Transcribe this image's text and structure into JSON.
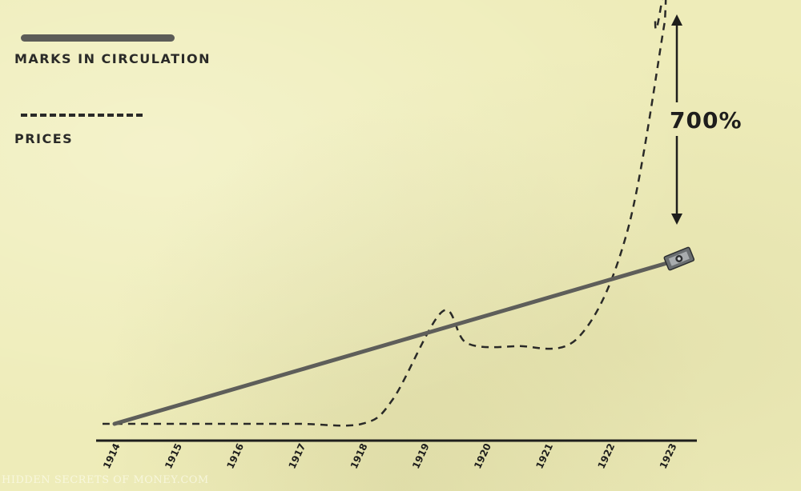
{
  "chart_data": {
    "type": "line",
    "categories": [
      "1914",
      "1915",
      "1916",
      "1917",
      "1918",
      "1919",
      "1920",
      "1921",
      "1922",
      "1923"
    ],
    "series": [
      {
        "name": "MARKS IN CIRCULATION",
        "style": "solid",
        "color": "#5c5c58",
        "values": [
          0,
          12.5,
          25,
          37.5,
          50,
          62.5,
          75,
          87.5,
          100,
          112.5
        ]
      },
      {
        "name": "PRICES",
        "style": "dashed",
        "color": "#2a2a28",
        "points": [
          {
            "x": 1914.0,
            "y": 0
          },
          {
            "x": 1915.0,
            "y": 0
          },
          {
            "x": 1916.0,
            "y": 0
          },
          {
            "x": 1917.0,
            "y": 0
          },
          {
            "x": 1918.0,
            "y": 0
          },
          {
            "x": 1918.5,
            "y": 17
          },
          {
            "x": 1919.3,
            "y": 78
          },
          {
            "x": 1919.7,
            "y": 56
          },
          {
            "x": 1920.5,
            "y": 54
          },
          {
            "x": 1921.5,
            "y": 60
          },
          {
            "x": 1922.3,
            "y": 135
          },
          {
            "x": 1922.9,
            "y": 280
          }
        ]
      }
    ],
    "annotation": "700%",
    "legend_position": "top-left",
    "grid": false
  },
  "watermark": "HIDDEN SECRETS OF MONEY.COM"
}
